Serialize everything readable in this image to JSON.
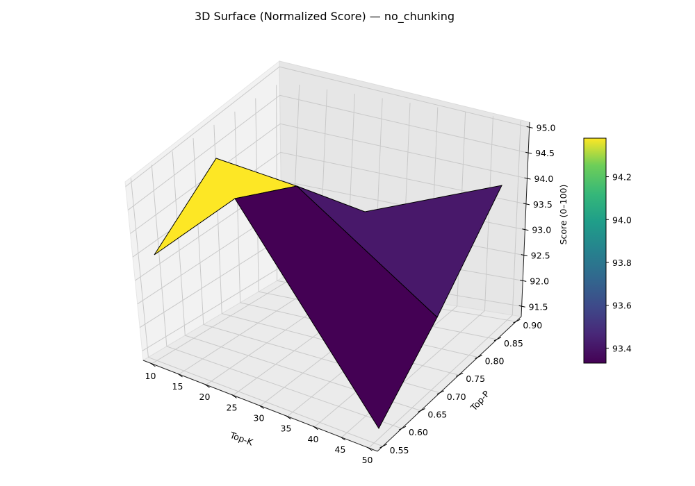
{
  "chart_data": {
    "type": "surface3d",
    "title": "3D Surface (Normalized Score) — no_chunking",
    "xlabel": "Top-K",
    "ylabel": "Top-P",
    "zlabel": "Score (0–100)",
    "x_ticks": [
      "10",
      "15",
      "20",
      "25",
      "30",
      "35",
      "40",
      "45",
      "50"
    ],
    "y_ticks": [
      "0.55",
      "0.60",
      "0.65",
      "0.70",
      "0.75",
      "0.80",
      "0.85",
      "0.90"
    ],
    "z_ticks": [
      "91.5",
      "92.0",
      "92.5",
      "93.0",
      "93.5",
      "94.0",
      "94.5",
      "95.0"
    ],
    "xlim": [
      8.4,
      51.6
    ],
    "ylim": [
      0.536,
      0.914
    ],
    "zlim": [
      91.3,
      95.1
    ],
    "grid": true,
    "points": [
      {
        "x": 10,
        "y": 0.6,
        "z": 93.4
      },
      {
        "x": 10,
        "y": 0.9,
        "z": 94.38
      },
      {
        "x": 50,
        "y": 0.6,
        "z": 93.33
      },
      {
        "x": 50,
        "y": 0.9,
        "z": 91.6
      },
      {
        "x": 30,
        "y": 0.75,
        "z": 92.5
      }
    ],
    "faces": [
      {
        "name": "face-yellow",
        "value": 94.38,
        "color": "#fde725"
      },
      {
        "name": "face-dark-purple",
        "value": 93.33,
        "color": "#440154"
      },
      {
        "name": "face-purple",
        "value": 93.42,
        "color": "#48186a"
      }
    ],
    "colorbar": {
      "ticks": [
        "93.4",
        "93.6",
        "93.8",
        "94.0",
        "94.2"
      ],
      "min": 93.33,
      "max": 94.38,
      "colormap": "viridis"
    }
  }
}
